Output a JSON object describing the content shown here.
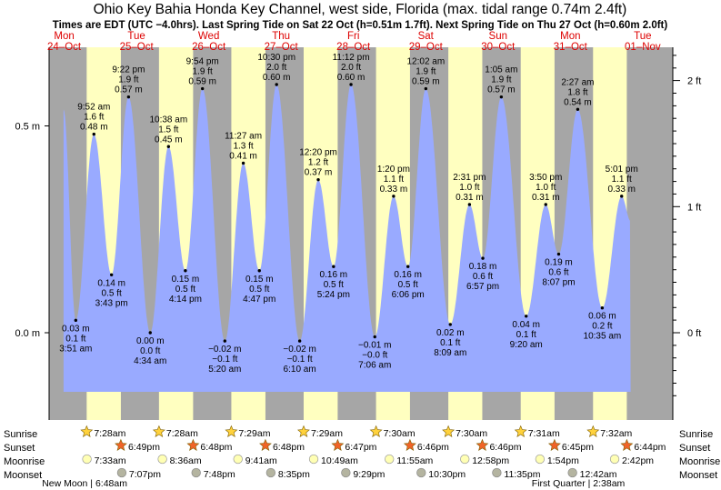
{
  "chart_data": {
    "type": "area",
    "title": "Ohio Key Bahia Honda Key Channel, west side, Florida (max. tidal range 0.74m 2.4ft)",
    "subtitle": "Times are EDT (UTC −4.0hrs). Last Spring Tide on Sat 22 Oct (h=0.51m 1.7ft). Next Spring Tide on Thu 27 Oct (h=0.60m 2.0ft)",
    "time_range_hours": [
      -5,
      202
    ],
    "ylim_m": [
      -0.17,
      0.71
    ],
    "left_axis": {
      "ticks": [
        0.0,
        0.5
      ],
      "labels": [
        "0.0 m",
        "0.5 m"
      ]
    },
    "right_axis": {
      "ticks_ft": [
        0,
        1,
        2
      ],
      "labels": [
        "0 ft",
        "1 ft",
        "2 ft"
      ]
    },
    "days": [
      {
        "dow": "Mon",
        "date": "24–Oct",
        "weekend": false
      },
      {
        "dow": "Tue",
        "date": "25–Oct",
        "weekend": false
      },
      {
        "dow": "Wed",
        "date": "26–Oct",
        "weekend": false
      },
      {
        "dow": "Thu",
        "date": "27–Oct",
        "weekend": false
      },
      {
        "dow": "Fri",
        "date": "28–Oct",
        "weekend": false
      },
      {
        "dow": "Sat",
        "date": "29–Oct",
        "weekend": true
      },
      {
        "dow": "Sun",
        "date": "30–Oct",
        "weekend": true
      },
      {
        "dow": "Mon",
        "date": "31–Oct",
        "weekend": false
      },
      {
        "dow": "Tue",
        "date": "01–Nov",
        "weekend": false
      }
    ],
    "extremes": [
      {
        "t": -0.2,
        "h": 0.54,
        "label": false
      },
      {
        "t": 3.85,
        "h": 0.03,
        "type": "low",
        "m": "0.03 m",
        "ft": "0.1 ft",
        "time": "3:51 am"
      },
      {
        "t": 9.87,
        "h": 0.48,
        "type": "high",
        "m": "0.48 m",
        "ft": "1.6 ft",
        "time": "9:52 am"
      },
      {
        "t": 15.72,
        "h": 0.14,
        "type": "low",
        "m": "0.14 m",
        "ft": "0.5 ft",
        "time": "3:43 pm"
      },
      {
        "t": 21.37,
        "h": 0.57,
        "type": "high",
        "m": "0.57 m",
        "ft": "1.9 ft",
        "time": "9:22 pm"
      },
      {
        "t": 28.57,
        "h": 0.0,
        "type": "low",
        "m": "0.00 m",
        "ft": "0.0 ft",
        "time": "4:34 am"
      },
      {
        "t": 34.63,
        "h": 0.45,
        "type": "high",
        "m": "0.45 m",
        "ft": "1.5 ft",
        "time": "10:38 am"
      },
      {
        "t": 40.23,
        "h": 0.15,
        "type": "low",
        "m": "0.15 m",
        "ft": "0.5 ft",
        "time": "4:14 pm"
      },
      {
        "t": 45.9,
        "h": 0.59,
        "type": "high",
        "m": "0.59 m",
        "ft": "1.9 ft",
        "time": "9:54 pm"
      },
      {
        "t": 53.33,
        "h": -0.02,
        "type": "low",
        "m": "−0.02 m",
        "ft": "−0.1 ft",
        "time": "5:20 am"
      },
      {
        "t": 59.45,
        "h": 0.41,
        "type": "high",
        "m": "0.41 m",
        "ft": "1.3 ft",
        "time": "11:27 am"
      },
      {
        "t": 64.78,
        "h": 0.15,
        "type": "low",
        "m": "0.15 m",
        "ft": "0.5 ft",
        "time": "4:47 pm"
      },
      {
        "t": 70.5,
        "h": 0.6,
        "type": "high",
        "m": "0.60 m",
        "ft": "2.0 ft",
        "time": "10:30 pm"
      },
      {
        "t": 78.17,
        "h": -0.02,
        "type": "low",
        "m": "−0.02 m",
        "ft": "−0.1 ft",
        "time": "6:10 am"
      },
      {
        "t": 84.33,
        "h": 0.37,
        "type": "high",
        "m": "0.37 m",
        "ft": "1.2 ft",
        "time": "12:20 pm"
      },
      {
        "t": 89.4,
        "h": 0.16,
        "type": "low",
        "m": "0.16 m",
        "ft": "0.5 ft",
        "time": "5:24 pm"
      },
      {
        "t": 95.2,
        "h": 0.6,
        "type": "high",
        "m": "0.60 m",
        "ft": "2.0 ft",
        "time": "11:12 pm"
      },
      {
        "t": 103.1,
        "h": -0.01,
        "type": "low",
        "m": "−0.01 m",
        "ft": "−0.0 ft",
        "time": "7:06 am"
      },
      {
        "t": 109.33,
        "h": 0.33,
        "type": "high",
        "m": "0.33 m",
        "ft": "1.1 ft",
        "time": "1:20 pm"
      },
      {
        "t": 114.1,
        "h": 0.16,
        "type": "low",
        "m": "0.16 m",
        "ft": "0.5 ft",
        "time": "6:06 pm"
      },
      {
        "t": 120.03,
        "h": 0.59,
        "type": "high",
        "m": "0.59 m",
        "ft": "1.9 ft",
        "time": "12:02 am"
      },
      {
        "t": 128.15,
        "h": 0.02,
        "type": "low",
        "m": "0.02 m",
        "ft": "0.1 ft",
        "time": "8:09 am"
      },
      {
        "t": 134.52,
        "h": 0.31,
        "type": "high",
        "m": "0.31 m",
        "ft": "1.0 ft",
        "time": "2:31 pm"
      },
      {
        "t": 138.95,
        "h": 0.18,
        "type": "low",
        "m": "0.18 m",
        "ft": "0.6 ft",
        "time": "6:57 pm"
      },
      {
        "t": 145.08,
        "h": 0.57,
        "type": "high",
        "m": "0.57 m",
        "ft": "1.9 ft",
        "time": "1:05 am"
      },
      {
        "t": 153.33,
        "h": 0.04,
        "type": "low",
        "m": "0.04 m",
        "ft": "0.1 ft",
        "time": "9:20 am"
      },
      {
        "t": 159.83,
        "h": 0.31,
        "type": "high",
        "m": "0.31 m",
        "ft": "1.0 ft",
        "time": "3:50 pm"
      },
      {
        "t": 164.12,
        "h": 0.19,
        "type": "low",
        "m": "0.19 m",
        "ft": "0.6 ft",
        "time": "8:07 pm"
      },
      {
        "t": 170.45,
        "h": 0.54,
        "type": "high",
        "m": "0.54 m",
        "ft": "1.8 ft",
        "time": "2:27 am"
      },
      {
        "t": 178.58,
        "h": 0.06,
        "type": "low",
        "m": "0.06 m",
        "ft": "0.2 ft",
        "time": "10:35 am"
      },
      {
        "t": 185.02,
        "h": 0.33,
        "type": "high",
        "m": "0.33 m",
        "ft": "1.1 ft",
        "time": "5:01 pm"
      },
      {
        "t": 188.0,
        "h": 0.27,
        "label": false
      }
    ],
    "daylight": [
      {
        "rise_t": 7.47,
        "set_t": 18.82,
        "sunrise": "7:28am",
        "sunset": "6:49pm"
      },
      {
        "rise_t": 31.47,
        "set_t": 42.8,
        "sunrise": "7:28am",
        "sunset": "6:48pm"
      },
      {
        "rise_t": 55.48,
        "set_t": 66.8,
        "sunrise": "7:29am",
        "sunset": "6:48pm"
      },
      {
        "rise_t": 79.48,
        "set_t": 90.78,
        "sunrise": "7:29am",
        "sunset": "6:47pm"
      },
      {
        "rise_t": 103.5,
        "set_t": 114.77,
        "sunrise": "7:30am",
        "sunset": "6:46pm"
      },
      {
        "rise_t": 127.5,
        "set_t": 138.77,
        "sunrise": "7:30am",
        "sunset": "6:46pm"
      },
      {
        "rise_t": 151.52,
        "set_t": 162.75,
        "sunrise": "7:31am",
        "sunset": "6:45pm"
      },
      {
        "rise_t": 175.53,
        "set_t": 186.73,
        "sunrise": "7:32am",
        "sunset": "6:44pm"
      }
    ],
    "moonrise": [
      {
        "t": 7.55,
        "label": "7:33am"
      },
      {
        "t": 32.6,
        "label": "8:36am"
      },
      {
        "t": 57.68,
        "label": "9:41am"
      },
      {
        "t": 82.82,
        "label": "10:49am"
      },
      {
        "t": 107.92,
        "label": "11:55am"
      },
      {
        "t": 132.97,
        "label": "12:58pm"
      },
      {
        "t": 157.9,
        "label": "1:54pm"
      },
      {
        "t": 182.7,
        "label": "2:42pm"
      }
    ],
    "moonset": [
      {
        "t": 19.12,
        "label": "7:07pm"
      },
      {
        "t": 43.8,
        "label": "7:48pm"
      },
      {
        "t": 68.58,
        "label": "8:35pm"
      },
      {
        "t": 93.48,
        "label": "9:29pm"
      },
      {
        "t": 118.5,
        "label": "10:30pm"
      },
      {
        "t": 143.58,
        "label": "11:35pm"
      },
      {
        "t": 168.7,
        "label": "12:42am"
      }
    ],
    "phases": [
      {
        "t": 6.8,
        "label": "New Moon | 6:48am"
      },
      {
        "t": 170.63,
        "label": "First Quarter | 2:38am"
      }
    ],
    "rows": {
      "sunrise": "Sunrise",
      "sunset": "Sunset",
      "moonrise": "Moonrise",
      "moonset": "Moonset"
    },
    "colors": {
      "night": "#a6a6a6",
      "day": "#ffffc0",
      "water": "#99aaff",
      "day_text": "#dd0000",
      "sun_star": "#ffd23c",
      "sunset_star": "#f06428",
      "moonrise_disc": "#ffffb4",
      "moonset_disc": "#b4b4a0"
    }
  }
}
